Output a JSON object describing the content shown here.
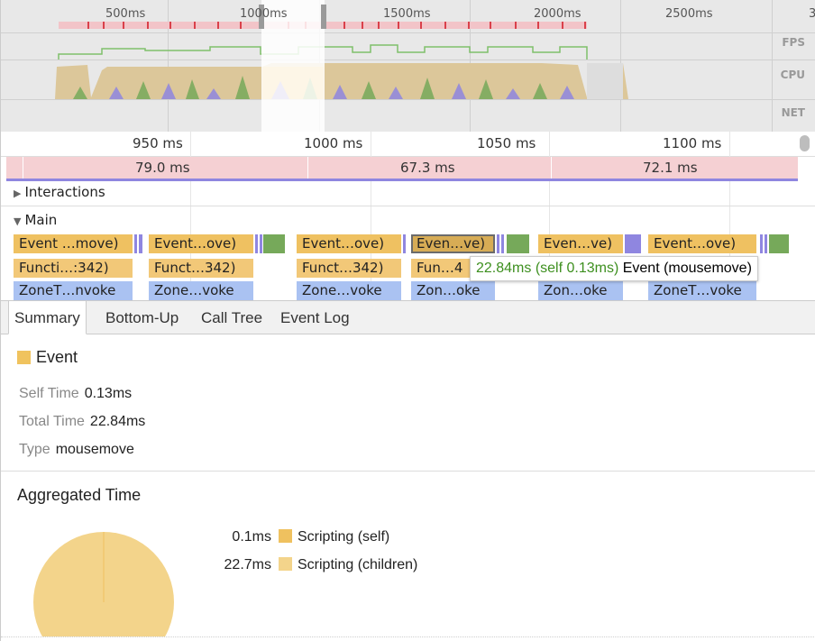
{
  "overview": {
    "tick_labels": [
      "500ms",
      "1000ms",
      "1500ms",
      "2000ms",
      "2500ms",
      "3"
    ],
    "tracks": [
      "FPS",
      "CPU",
      "NET"
    ]
  },
  "ruler": {
    "labels": [
      "950 ms",
      "1000 ms",
      "1050 ms",
      "1100 ms"
    ]
  },
  "frames": [
    "79.0 ms",
    "67.3 ms",
    "72.1 ms"
  ],
  "sections": {
    "interactions": "Interactions",
    "main": "Main"
  },
  "flame": {
    "events": [
      "Event …move)",
      "Event…ove)",
      "Event…ove)",
      "Even…ve)",
      "Even…ve)",
      "Event…ove)"
    ],
    "functions": [
      "Functi…:342)",
      "Funct…342)",
      "Funct…342)",
      "Fun…4"
    ],
    "zones": [
      "ZoneT…nvoke",
      "Zone…voke",
      "Zone…voke",
      "Zon…oke",
      "Zon…oke",
      "ZoneT…voke"
    ]
  },
  "tooltip": {
    "time": "22.84ms (self 0.13ms)",
    "name": "Event (mousemove)"
  },
  "tabs": [
    "Summary",
    "Bottom-Up",
    "Call Tree",
    "Event Log"
  ],
  "summary": {
    "title": "Event",
    "self_time_label": "Self Time",
    "self_time": "0.13ms",
    "total_time_label": "Total Time",
    "total_time": "22.84ms",
    "type_label": "Type",
    "type": "mousemove"
  },
  "aggregated": {
    "title": "Aggregated Time",
    "rows": [
      {
        "value": "0.1ms",
        "label": "Scripting (self)",
        "color": "#efc15f"
      },
      {
        "value": "22.7ms",
        "label": "Scripting (children)",
        "color": "#f3d48b"
      }
    ]
  },
  "colors": {
    "event": "#efc161",
    "function": "#f2c878",
    "zone": "#aac2f2",
    "frame": "#f5d0d3",
    "tooltip_time": "#3d8f1f"
  }
}
